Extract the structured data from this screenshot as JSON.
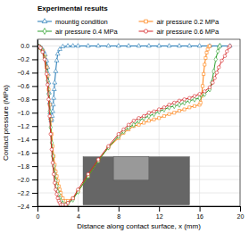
{
  "chart_data": {
    "type": "line",
    "xlabel": "Distance along contact surface, x (mm)",
    "ylabel": "Contact pressure (MPa)",
    "xlim": [
      0,
      20
    ],
    "ylim": [
      -2.4,
      0.1
    ],
    "xticks": [
      0,
      4,
      8,
      12,
      16,
      20
    ],
    "yticks": [
      {
        "value": 0,
        "label": "0.0"
      },
      {
        "value": -0.2,
        "label": "−0.2"
      },
      {
        "value": -0.4,
        "label": "−0.4"
      },
      {
        "value": -0.6,
        "label": "−0.6"
      },
      {
        "value": -0.8,
        "label": "−0.8"
      },
      {
        "value": -1.0,
        "label": "−1.0"
      },
      {
        "value": -1.2,
        "label": "−1.2"
      },
      {
        "value": -1.4,
        "label": "−1.4"
      },
      {
        "value": -1.6,
        "label": "−1.6"
      },
      {
        "value": -1.8,
        "label": "−1.8"
      },
      {
        "value": -2.0,
        "label": "−2.0"
      },
      {
        "value": -2.2,
        "label": "−2.2"
      },
      {
        "value": -2.4,
        "label": "−2.4"
      }
    ],
    "grid": true,
    "legend": "top",
    "legend_title": "Experimental results",
    "series": [
      {
        "name": "mountig condition",
        "marker": "triangle",
        "x": [
          0.0,
          0.15,
          0.3,
          0.45,
          0.6,
          0.75,
          0.9,
          1.0,
          1.05,
          1.1,
          1.15,
          1.2,
          1.25,
          1.3,
          1.35,
          1.4,
          1.45,
          1.5,
          1.55,
          1.6,
          1.65,
          1.7,
          1.8,
          1.9,
          2.0,
          2.2,
          2.5,
          3.0,
          3.5,
          4.0,
          5.0,
          6.0,
          7.0,
          8.0,
          9.0,
          10.0,
          11.0,
          12.0,
          13.0,
          14.0,
          15.0,
          16.0,
          17.0,
          18.0,
          19.0
        ],
        "values": [
          0.0,
          -0.01,
          -0.02,
          -0.04,
          -0.08,
          -0.13,
          -0.22,
          -0.32,
          -0.42,
          -0.55,
          -0.7,
          -0.85,
          -1.0,
          -1.08,
          -1.12,
          -1.1,
          -1.05,
          -0.98,
          -0.88,
          -0.78,
          -0.65,
          -0.55,
          -0.38,
          -0.22,
          -0.12,
          -0.05,
          -0.01,
          0.0,
          0.0,
          0.0,
          0.0,
          0.0,
          0.0,
          0.0,
          0.0,
          0.0,
          0.0,
          0.0,
          0.0,
          0.0,
          0.0,
          0.0,
          0.0,
          0.0,
          0.0
        ]
      },
      {
        "name": "air pressure 0.2 MPa",
        "marker": "square",
        "x": [
          0.0,
          0.15,
          0.3,
          0.5,
          0.7,
          0.9,
          1.0,
          1.1,
          1.2,
          1.3,
          1.4,
          1.5,
          1.6,
          1.7,
          1.8,
          1.9,
          2.0,
          2.1,
          2.2,
          2.3,
          2.5,
          2.8,
          3.0,
          3.5,
          4.0,
          5.0,
          6.0,
          7.0,
          8.0,
          8.5,
          9.0,
          9.5,
          10.0,
          10.5,
          11.0,
          11.5,
          12.0,
          12.5,
          13.0,
          13.5,
          14.0,
          14.5,
          15.0,
          15.5,
          16.0,
          16.1,
          16.2,
          16.3,
          16.4,
          16.5,
          16.6,
          16.7,
          16.8,
          16.9,
          17.0
        ],
        "values": [
          0.0,
          -0.01,
          -0.03,
          -0.07,
          -0.16,
          -0.32,
          -0.45,
          -0.65,
          -0.88,
          -1.1,
          -1.32,
          -1.5,
          -1.65,
          -1.78,
          -1.88,
          -1.95,
          -2.02,
          -2.1,
          -2.15,
          -2.2,
          -2.28,
          -2.32,
          -2.32,
          -2.28,
          -2.18,
          -1.95,
          -1.72,
          -1.52,
          -1.38,
          -1.3,
          -1.25,
          -1.2,
          -1.18,
          -1.15,
          -1.12,
          -1.1,
          -1.08,
          -1.05,
          -1.02,
          -1.0,
          -0.97,
          -0.95,
          -0.92,
          -0.9,
          -0.88,
          -0.85,
          -0.75,
          -0.6,
          -0.42,
          -0.28,
          -0.18,
          -0.1,
          -0.05,
          -0.01,
          0.0
        ]
      },
      {
        "name": "air pressure 0.4 MPa",
        "marker": "diamond",
        "x": [
          0.0,
          0.15,
          0.3,
          0.5,
          0.7,
          0.9,
          1.0,
          1.1,
          1.2,
          1.3,
          1.4,
          1.5,
          1.6,
          1.7,
          1.8,
          1.9,
          2.0,
          2.1,
          2.2,
          2.3,
          2.5,
          2.8,
          3.0,
          3.5,
          4.0,
          5.0,
          6.0,
          7.0,
          8.0,
          8.5,
          9.0,
          9.5,
          10.0,
          10.5,
          11.0,
          11.5,
          12.0,
          12.5,
          13.0,
          13.5,
          14.0,
          14.5,
          15.0,
          15.5,
          16.0,
          16.5,
          17.0,
          17.2,
          17.4,
          17.6,
          17.8,
          17.9,
          18.0
        ],
        "values": [
          0.0,
          -0.01,
          -0.03,
          -0.08,
          -0.18,
          -0.38,
          -0.52,
          -0.72,
          -0.98,
          -1.22,
          -1.45,
          -1.65,
          -1.8,
          -1.92,
          -2.02,
          -2.1,
          -2.18,
          -2.22,
          -2.28,
          -2.32,
          -2.36,
          -2.38,
          -2.36,
          -2.3,
          -2.18,
          -1.95,
          -1.72,
          -1.52,
          -1.35,
          -1.28,
          -1.22,
          -1.18,
          -1.12,
          -1.08,
          -1.05,
          -1.02,
          -0.98,
          -0.95,
          -0.92,
          -0.9,
          -0.88,
          -0.85,
          -0.82,
          -0.8,
          -0.78,
          -0.72,
          -0.65,
          -0.55,
          -0.38,
          -0.2,
          -0.08,
          -0.02,
          0.0
        ]
      },
      {
        "name": "air pressure 0.6 MPa",
        "marker": "circle",
        "x": [
          0.0,
          0.15,
          0.3,
          0.5,
          0.7,
          0.9,
          1.0,
          1.1,
          1.2,
          1.3,
          1.4,
          1.5,
          1.6,
          1.7,
          1.8,
          1.9,
          2.0,
          2.1,
          2.2,
          2.3,
          2.5,
          2.8,
          3.0,
          3.5,
          4.0,
          5.0,
          6.0,
          7.0,
          8.0,
          8.5,
          9.0,
          9.5,
          10.0,
          10.5,
          11.0,
          11.5,
          12.0,
          12.5,
          13.0,
          13.5,
          14.0,
          14.5,
          15.0,
          15.5,
          16.0,
          16.5,
          17.0,
          17.3,
          17.5,
          17.7,
          17.9,
          18.2,
          18.5,
          18.7,
          18.9,
          19.0
        ],
        "values": [
          0.0,
          -0.01,
          -0.03,
          -0.09,
          -0.2,
          -0.42,
          -0.58,
          -0.8,
          -1.05,
          -1.32,
          -1.55,
          -1.75,
          -1.92,
          -2.05,
          -2.15,
          -2.22,
          -2.28,
          -2.32,
          -2.35,
          -2.38,
          -2.38,
          -2.38,
          -2.35,
          -2.28,
          -2.15,
          -1.92,
          -1.7,
          -1.5,
          -1.32,
          -1.25,
          -1.18,
          -1.12,
          -1.08,
          -1.05,
          -1.0,
          -0.98,
          -0.95,
          -0.92,
          -0.88,
          -0.85,
          -0.82,
          -0.8,
          -0.78,
          -0.75,
          -0.72,
          -0.68,
          -0.62,
          -0.55,
          -0.48,
          -0.4,
          -0.32,
          -0.22,
          -0.15,
          -0.08,
          -0.02,
          0.0
        ]
      }
    ],
    "shapes": [
      {
        "x": 4.5,
        "y": -2.38,
        "width": 10.5,
        "height": 0.72,
        "color": "#666666"
      },
      {
        "x": 7.5,
        "y": -2.01,
        "width": 3.5,
        "height": 0.35,
        "color": "#999999"
      }
    ]
  }
}
